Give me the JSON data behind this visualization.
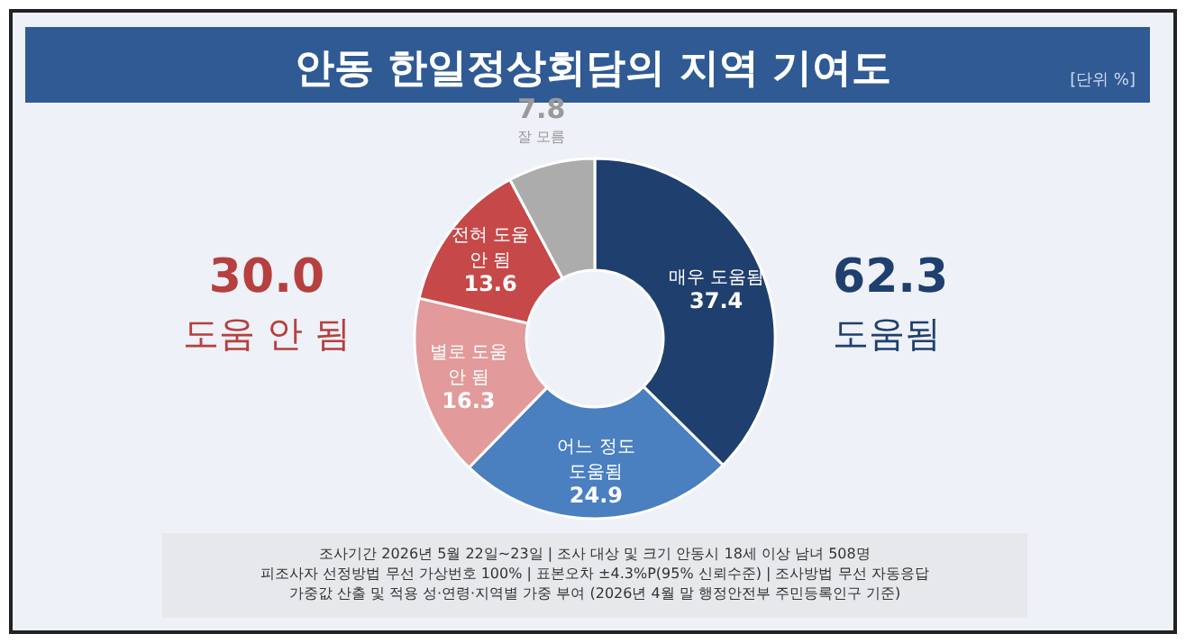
{
  "chart_data": {
    "type": "donut",
    "title": "안동 한일정상회담의 지역 기여도",
    "categories": [
      "매우 도움됨",
      "어느 정도 도움됨",
      "별로 도움 안 됨",
      "전혀 도움 안 됨",
      "잘 모름"
    ],
    "values": [
      37.4,
      24.9,
      16.3,
      13.6,
      7.8
    ],
    "colors": [
      "#1f3f6e",
      "#4a7fc0",
      "#e29a9a",
      "#c64848",
      "#acacac"
    ],
    "data_labels": true,
    "annotations": [
      "[단위 %]",
      "30.0",
      "도움 안 됨",
      "62.3",
      "도움됨",
      "조사기간 2026년 5월 22일~23일 | 조사 대상 및 크기 안동시 18세 이상 남녀 508명",
      "피조사자 선정방법 무선 가상번호 100% | 표본오차 ±4.3%P(95% 신뢰수준) | 조사방법 무선 자동응답",
      "가중값 산출 및 적용 성·연령·지역별 가중 부여 (2026년 4월 말 행정안전부 주민등록인구 기준)"
    ]
  }
}
